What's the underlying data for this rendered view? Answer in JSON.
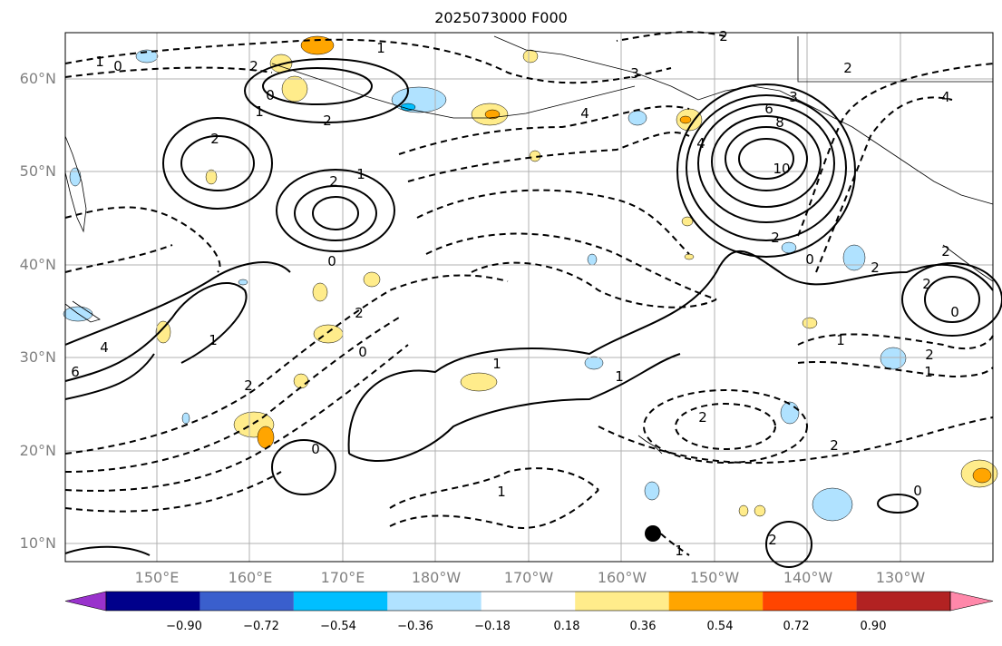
{
  "title": "2025073000 F000",
  "lat_labels": [
    "60°N",
    "50°N",
    "40°N",
    "30°N",
    "20°N",
    "10°N"
  ],
  "lon_labels": [
    "150°E",
    "160°E",
    "170°E",
    "180°W",
    "170°W",
    "160°W",
    "150°W",
    "140°W",
    "130°W"
  ],
  "colorbar": {
    "ticks": [
      "−0.90",
      "−0.72",
      "−0.54",
      "−0.36",
      "−0.18",
      "0.18",
      "0.36",
      "0.54",
      "0.72",
      "0.90"
    ],
    "colors": [
      "#9932cc",
      "#00008b",
      "#3a5fcd",
      "#00bfff",
      "#b0e2ff",
      "#ffffff",
      "#ffec8b",
      "#ffa500",
      "#ff4500",
      "#b22222",
      "#ff88aa"
    ]
  },
  "contour_labels": [
    "1",
    "0",
    "2",
    "1",
    "0",
    "2",
    "1",
    "2",
    "3",
    "2",
    "4",
    "6",
    "8",
    "10",
    "2",
    "4",
    "2",
    "1",
    "0",
    "2",
    "2",
    "1",
    "0",
    "2",
    "4",
    "3",
    "2",
    "1",
    "0",
    "2",
    "0",
    "2",
    "1",
    "2",
    "0",
    "1",
    "6",
    "2",
    "0",
    "1",
    "2",
    "1",
    "2",
    "1",
    "4"
  ]
}
